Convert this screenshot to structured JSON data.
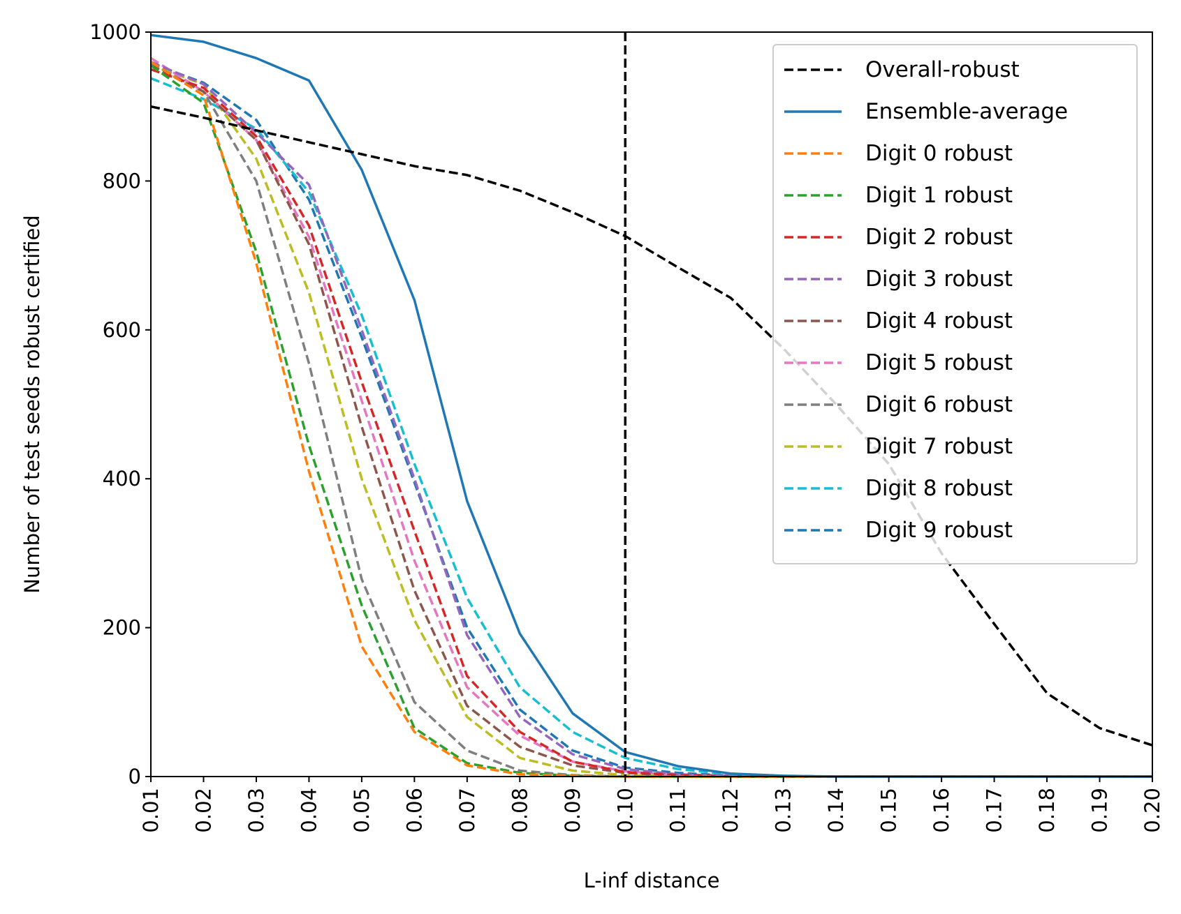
{
  "chart_data": {
    "type": "line",
    "title": "",
    "xlabel": "L-inf distance",
    "ylabel": "Number of test seeds robust certified",
    "xlim": [
      0.01,
      0.2
    ],
    "ylim": [
      0,
      1000
    ],
    "x": [
      0.01,
      0.02,
      0.03,
      0.04,
      0.05,
      0.06,
      0.07,
      0.08,
      0.09,
      0.1,
      0.11,
      0.12,
      0.13,
      0.14,
      0.15,
      0.16,
      0.17,
      0.18,
      0.19,
      0.2
    ],
    "x_tick_labels": [
      "0.01",
      "0.02",
      "0.03",
      "0.04",
      "0.05",
      "0.06",
      "0.07",
      "0.08",
      "0.09",
      "0.10",
      "0.11",
      "0.12",
      "0.13",
      "0.14",
      "0.15",
      "0.16",
      "0.17",
      "0.18",
      "0.19",
      "0.20"
    ],
    "y_ticks": [
      0,
      200,
      400,
      600,
      800,
      1000
    ],
    "y_tick_labels": [
      "0",
      "200",
      "400",
      "600",
      "800",
      "1000"
    ],
    "grid": false,
    "legend_position": "top-right",
    "vline": {
      "x": 0.1,
      "color": "#000000",
      "style": "dashed"
    },
    "series": [
      {
        "name": "Overall-robust",
        "color": "#000000",
        "style": "dashed",
        "values": [
          900,
          885,
          868,
          852,
          836,
          820,
          808,
          787,
          758,
          726,
          684,
          643,
          575,
          500,
          420,
          300,
          205,
          112,
          65,
          42
        ]
      },
      {
        "name": "Ensemble-average",
        "color": "#1f77b4",
        "style": "solid",
        "values": [
          996,
          987,
          965,
          935,
          815,
          640,
          370,
          192,
          85,
          33,
          14,
          4,
          1,
          0,
          0,
          0,
          0,
          0,
          0,
          0
        ]
      },
      {
        "name": "Digit 0 robust",
        "color": "#ff7f0e",
        "style": "dashed",
        "values": [
          960,
          915,
          690,
          410,
          175,
          60,
          15,
          3,
          1,
          0,
          0,
          0,
          0,
          0,
          0,
          0,
          0,
          0,
          0,
          0
        ]
      },
      {
        "name": "Digit 1 robust",
        "color": "#2ca02c",
        "style": "dashed",
        "values": [
          955,
          905,
          705,
          445,
          230,
          65,
          18,
          5,
          1,
          0,
          0,
          0,
          0,
          0,
          0,
          0,
          0,
          0,
          0,
          0
        ]
      },
      {
        "name": "Digit 2 robust",
        "color": "#d62728",
        "style": "dashed",
        "values": [
          950,
          925,
          860,
          740,
          530,
          330,
          135,
          60,
          20,
          6,
          2,
          0,
          0,
          0,
          0,
          0,
          0,
          0,
          0,
          0
        ]
      },
      {
        "name": "Digit 3 robust",
        "color": "#9467bd",
        "style": "dashed",
        "values": [
          960,
          930,
          865,
          795,
          600,
          400,
          190,
          80,
          30,
          10,
          3,
          1,
          0,
          0,
          0,
          0,
          0,
          0,
          0,
          0
        ]
      },
      {
        "name": "Digit 4 robust",
        "color": "#8c564b",
        "style": "dashed",
        "values": [
          955,
          920,
          855,
          715,
          470,
          250,
          95,
          40,
          15,
          5,
          1,
          0,
          0,
          0,
          0,
          0,
          0,
          0,
          0,
          0
        ]
      },
      {
        "name": "Digit 5 robust",
        "color": "#e377c2",
        "style": "dashed",
        "values": [
          965,
          920,
          855,
          725,
          505,
          290,
          120,
          55,
          20,
          7,
          2,
          0,
          0,
          0,
          0,
          0,
          0,
          0,
          0,
          0
        ]
      },
      {
        "name": "Digit 6 robust",
        "color": "#7f7f7f",
        "style": "dashed",
        "values": [
          958,
          920,
          800,
          555,
          265,
          100,
          35,
          8,
          2,
          0,
          0,
          0,
          0,
          0,
          0,
          0,
          0,
          0,
          0,
          0
        ]
      },
      {
        "name": "Digit 7 robust",
        "color": "#bcbd22",
        "style": "dashed",
        "values": [
          955,
          930,
          830,
          650,
          400,
          210,
          80,
          25,
          8,
          2,
          0,
          0,
          0,
          0,
          0,
          0,
          0,
          0,
          0,
          0
        ]
      },
      {
        "name": "Digit 8 robust",
        "color": "#17becf",
        "style": "dashed",
        "values": [
          938,
          910,
          870,
          785,
          620,
          420,
          240,
          120,
          60,
          25,
          10,
          3,
          1,
          0,
          0,
          0,
          0,
          0,
          0,
          0
        ]
      },
      {
        "name": "Digit 9 robust",
        "color": "#1f77b4",
        "style": "dashed",
        "values": [
          958,
          932,
          882,
          775,
          590,
          395,
          200,
          90,
          35,
          12,
          5,
          1,
          0,
          0,
          0,
          0,
          0,
          0,
          0,
          0
        ]
      }
    ]
  }
}
